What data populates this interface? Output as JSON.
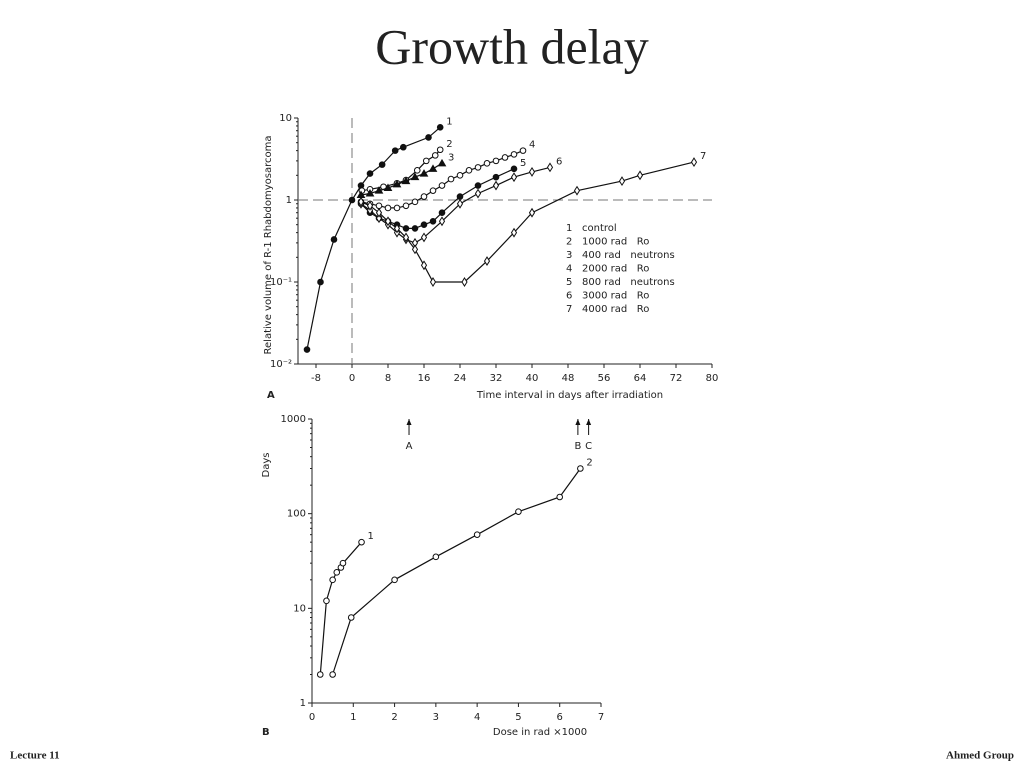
{
  "slide": {
    "title": "Growth delay",
    "footer_left": "Lecture 11",
    "footer_right": "Ahmed Group"
  },
  "chart_data": [
    {
      "type": "line",
      "panel": "A",
      "y_label": "Relative volume of R-1 Rhabdomyosarcoma",
      "x_label": "Time interval in days after irradiation",
      "xlim": [
        -12,
        80
      ],
      "ylim": [
        0.01,
        10
      ],
      "yscale": "log",
      "xticks": [
        -8,
        0,
        8,
        16,
        24,
        32,
        40,
        48,
        56,
        64,
        72,
        80
      ],
      "yticks": [
        {
          "value": 0.01,
          "label": "10⁻²"
        },
        {
          "value": 0.1,
          "label": "10⁻¹"
        },
        1,
        10
      ],
      "vlines": [
        0
      ],
      "hlines": [
        1
      ],
      "series": [
        {
          "label": "1",
          "name": "control",
          "color": "#111",
          "marker": "filled-circle",
          "x": [
            -10,
            -7,
            -4,
            0,
            2,
            4,
            6.7,
            9.6,
            11.4,
            17,
            19.6
          ],
          "values": [
            0.015,
            0.1,
            0.33,
            1,
            1.5,
            2.1,
            2.7,
            4.0,
            4.4,
            5.8,
            7.7
          ]
        },
        {
          "label": "2",
          "name": "1000 rad   Ro",
          "color": "#111",
          "marker": "open-circle",
          "x": [
            2.2,
            4,
            7,
            10,
            12,
            14.5,
            16.5,
            18.5,
            19.6
          ],
          "values": [
            1.3,
            1.35,
            1.45,
            1.6,
            1.75,
            2.3,
            3.0,
            3.5,
            4.1
          ]
        },
        {
          "label": "3",
          "name": "400 rad   neutrons",
          "color": "#111",
          "marker": "filled-triangle",
          "x": [
            2,
            4,
            6,
            8,
            10,
            12,
            14,
            16,
            18,
            20
          ],
          "values": [
            1.15,
            1.2,
            1.3,
            1.4,
            1.55,
            1.7,
            1.9,
            2.1,
            2.4,
            2.8
          ]
        },
        {
          "label": "4",
          "name": "2000 rad   Ro",
          "color": "#111",
          "marker": "open-circle",
          "x": [
            2,
            4,
            6,
            8,
            10,
            12,
            14,
            16,
            18,
            20,
            22,
            24,
            26,
            28,
            30,
            32,
            34,
            36,
            38
          ],
          "values": [
            0.95,
            0.9,
            0.85,
            0.8,
            0.8,
            0.85,
            0.95,
            1.1,
            1.3,
            1.5,
            1.8,
            2.0,
            2.3,
            2.5,
            2.8,
            3.0,
            3.3,
            3.6,
            4.0
          ]
        },
        {
          "label": "5",
          "name": "800 rad   neutrons",
          "color": "#111",
          "marker": "filled-circle",
          "x": [
            2,
            4,
            6,
            8,
            10,
            12,
            14,
            16,
            18,
            20,
            24,
            28,
            32,
            36
          ],
          "values": [
            0.9,
            0.7,
            0.6,
            0.55,
            0.5,
            0.45,
            0.45,
            0.5,
            0.55,
            0.7,
            1.1,
            1.5,
            1.9,
            2.4
          ]
        },
        {
          "label": "6",
          "name": "3000 rad   Ro",
          "color": "#111",
          "marker": "open-diamond",
          "x": [
            2,
            4,
            6,
            8,
            10,
            12,
            14,
            16,
            20,
            24,
            28,
            32,
            36,
            40,
            44
          ],
          "values": [
            0.9,
            0.75,
            0.6,
            0.5,
            0.4,
            0.33,
            0.3,
            0.35,
            0.55,
            0.9,
            1.2,
            1.5,
            1.9,
            2.2,
            2.5
          ]
        },
        {
          "label": "7",
          "name": "4000 rad   Ro",
          "color": "#111",
          "marker": "open-diamond",
          "x": [
            2,
            4,
            6,
            8,
            10,
            12,
            14,
            16,
            18,
            25,
            30,
            36,
            40,
            50,
            60,
            64,
            76
          ],
          "values": [
            0.95,
            0.85,
            0.7,
            0.55,
            0.45,
            0.35,
            0.25,
            0.16,
            0.1,
            0.1,
            0.18,
            0.4,
            0.7,
            1.3,
            1.7,
            2.0,
            2.9
          ]
        }
      ]
    },
    {
      "type": "line",
      "panel": "B",
      "y_label": "Days",
      "x_label": "Dose in rad ×1000",
      "xlim": [
        0,
        7
      ],
      "ylim": [
        1,
        1000
      ],
      "yscale": "log",
      "xticks": [
        0,
        1,
        2,
        3,
        4,
        5,
        6,
        7
      ],
      "yticks": [
        1,
        10,
        100,
        1000
      ],
      "annotations": [
        {
          "text": "A",
          "x": 2.35
        },
        {
          "text": "B",
          "x": 6.44
        },
        {
          "text": "C",
          "x": 6.7
        }
      ],
      "series": [
        {
          "label": "1",
          "color": "#111",
          "marker": "open-circle",
          "x": [
            0.2,
            0.35,
            0.5,
            0.6,
            0.7,
            0.75,
            1.2
          ],
          "values": [
            2,
            12,
            20,
            24,
            27,
            30,
            50
          ]
        },
        {
          "label": "2",
          "color": "#111",
          "marker": "open-circle",
          "x": [
            0.5,
            0.95,
            2,
            3,
            4,
            5,
            6,
            6.5
          ],
          "values": [
            2,
            8,
            20,
            35,
            60,
            105,
            150,
            300
          ]
        }
      ]
    }
  ]
}
